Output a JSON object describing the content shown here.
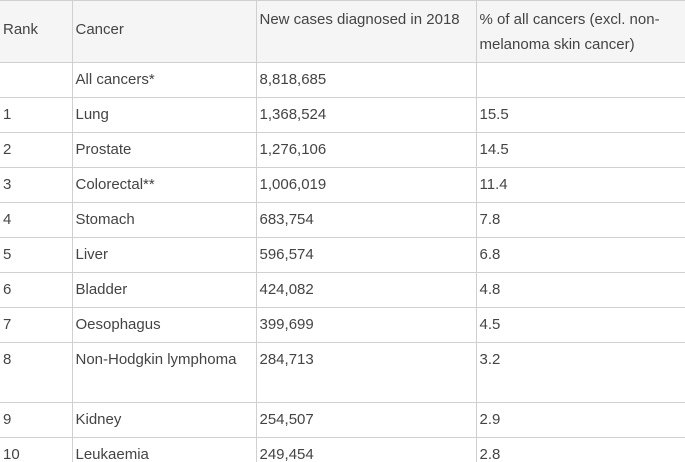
{
  "table": {
    "headers": {
      "rank": "Rank",
      "cancer": "Cancer",
      "cases": "New cases diagnosed in 2018",
      "percent": "% of all cancers (excl. non-melanoma skin cancer)"
    },
    "rows": [
      {
        "rank": "",
        "cancer": "All cancers*",
        "cases": "8,818,685",
        "percent": ""
      },
      {
        "rank": "1",
        "cancer": "Lung",
        "cases": "1,368,524",
        "percent": "15.5"
      },
      {
        "rank": "2",
        "cancer": "Prostate",
        "cases": "1,276,106",
        "percent": "14.5"
      },
      {
        "rank": "3",
        "cancer": "Colorectal**",
        "cases": "1,006,019",
        "percent": "11.4"
      },
      {
        "rank": "4",
        "cancer": "Stomach",
        "cases": "683,754",
        "percent": "7.8"
      },
      {
        "rank": "5",
        "cancer": "Liver",
        "cases": "596,574",
        "percent": "6.8"
      },
      {
        "rank": "6",
        "cancer": "Bladder",
        "cases": "424,082",
        "percent": "4.8"
      },
      {
        "rank": "7",
        "cancer": "Oesophagus",
        "cases": "399,699",
        "percent": "4.5"
      },
      {
        "rank": "8",
        "cancer": "Non-Hodgkin lymphoma",
        "cases": "284,713",
        "percent": "3.2"
      },
      {
        "rank": "9",
        "cancer": "Kidney",
        "cases": "254,507",
        "percent": "2.9"
      },
      {
        "rank": "10",
        "cancer": "Leukaemia",
        "cases": "249,454",
        "percent": "2.8"
      }
    ]
  },
  "colors": {
    "header_background": "#f5f5f5",
    "border": "#d0d0d0",
    "text": "#444444"
  }
}
